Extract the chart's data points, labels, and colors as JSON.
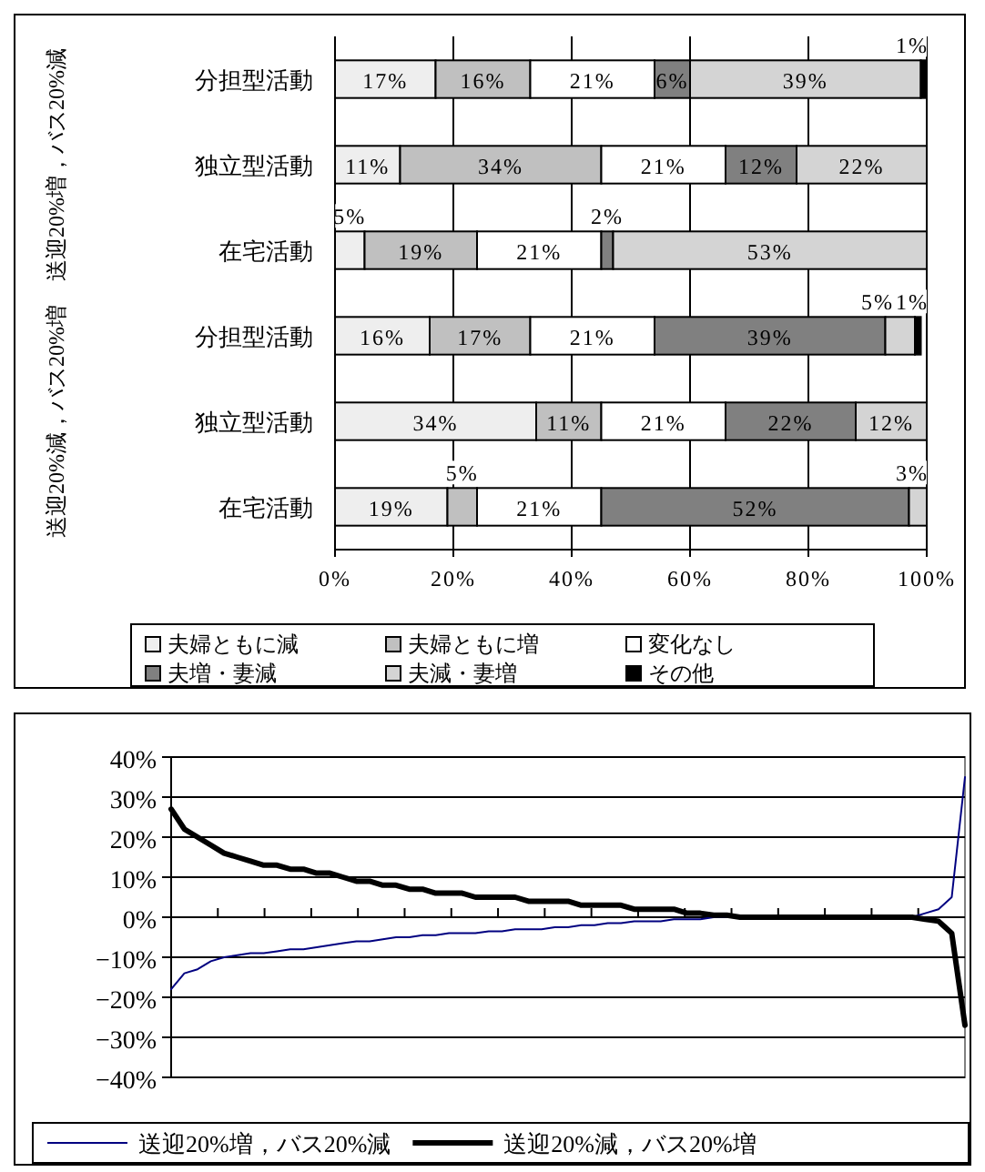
{
  "chart_data": [
    {
      "type": "bar",
      "orientation": "horizontal",
      "stacked": true,
      "categories": [
        "分担型活動",
        "独立型活動",
        "在宅活動",
        "分担型活動",
        "独立型活動",
        "在宅活動"
      ],
      "annotations": [
        "送迎20%増，バス20%減",
        "送迎20%減，バス20%増"
      ],
      "series": [
        {
          "name": "夫婦ともに減",
          "color": "#eeeeee",
          "values": [
            17,
            11,
            5,
            16,
            34,
            19
          ],
          "value_labels": [
            "17%",
            "11%",
            "5%",
            "16%",
            "34%",
            "19%"
          ]
        },
        {
          "name": "夫婦ともに増",
          "color": "#c0c0c0",
          "values": [
            16,
            34,
            19,
            17,
            11,
            5
          ],
          "value_labels": [
            "16%",
            "34%",
            "19%",
            "17%",
            "11%",
            "5%"
          ]
        },
        {
          "name": "変化なし",
          "color": "#ffffff",
          "values": [
            21,
            21,
            21,
            21,
            21,
            21
          ],
          "value_labels": [
            "21%",
            "21%",
            "21%",
            "21%",
            "21%",
            "21%"
          ]
        },
        {
          "name": "夫増・妻減",
          "color": "#808080",
          "values": [
            6,
            12,
            2,
            39,
            22,
            52
          ],
          "value_labels": [
            "6%",
            "12%",
            "2%",
            "39%",
            "22%",
            "52%"
          ]
        },
        {
          "name": "夫減・妻増",
          "color": "#d4d4d4",
          "values": [
            39,
            22,
            53,
            5,
            12,
            3
          ],
          "value_labels": [
            "39%",
            "22%",
            "53%",
            "5%",
            "12%",
            "3%"
          ]
        },
        {
          "name": "その他",
          "color": "#000000",
          "values": [
            1,
            0,
            0,
            1,
            0,
            0
          ],
          "value_labels": [
            "1%",
            null,
            null,
            "1%",
            null,
            null
          ]
        }
      ],
      "xlim": [
        0,
        100
      ],
      "xticks": [
        {
          "value": 0,
          "label": "0%"
        },
        {
          "value": 20,
          "label": "20%"
        },
        {
          "value": 40,
          "label": "40%"
        },
        {
          "value": 60,
          "label": "60%"
        },
        {
          "value": 80,
          "label": "80%"
        },
        {
          "value": 100,
          "label": "100%"
        }
      ],
      "grid": "x",
      "legend": "bottom"
    },
    {
      "type": "line",
      "categories": [
        null,
        null,
        null,
        null,
        null,
        null,
        null,
        null,
        null,
        null,
        null,
        null,
        null,
        null,
        null,
        null,
        null,
        null,
        null,
        null,
        null,
        null,
        null,
        null,
        null,
        null,
        null,
        null,
        null,
        null,
        null,
        null,
        null,
        null,
        null,
        null,
        null,
        null,
        null,
        null,
        null,
        null,
        null,
        null,
        null,
        null,
        null,
        null,
        null,
        null,
        null,
        null,
        null,
        null,
        null,
        null,
        null,
        null,
        null,
        null,
        null
      ],
      "series": [
        {
          "name": "送迎20%増，バス20%減",
          "color": "#000080",
          "values": [
            -18,
            -14,
            -13,
            -11,
            -10,
            -9.5,
            -9,
            -9,
            -8.5,
            -8,
            -8,
            -7.5,
            -7,
            -6.5,
            -6,
            -6,
            -5.5,
            -5,
            -5,
            -4.5,
            -4.5,
            -4,
            -4,
            -4,
            -3.5,
            -3.5,
            -3,
            -3,
            -3,
            -2.5,
            -2.5,
            -2,
            -2,
            -1.5,
            -1.5,
            -1,
            -1,
            -1,
            -0.5,
            -0.5,
            -0.5,
            0,
            0,
            0,
            0,
            0,
            0,
            0,
            0,
            0,
            0,
            0,
            0,
            0,
            0,
            0,
            0,
            1,
            2,
            5,
            35
          ]
        },
        {
          "name": "送迎20%減，バス20%増",
          "color": "#000000",
          "values": [
            27,
            22,
            20,
            18,
            16,
            15,
            14,
            13,
            13,
            12,
            12,
            11,
            11,
            10,
            9,
            9,
            8,
            8,
            7,
            7,
            6,
            6,
            6,
            5,
            5,
            5,
            5,
            4,
            4,
            4,
            4,
            3,
            3,
            3,
            3,
            2,
            2,
            2,
            2,
            1,
            1,
            0.5,
            0.5,
            0,
            0,
            0,
            0,
            0,
            0,
            0,
            0,
            0,
            0,
            0,
            0,
            0,
            0,
            -0.5,
            -1,
            -4,
            -27
          ]
        }
      ],
      "ylim": [
        -40,
        40
      ],
      "yticks": [
        {
          "value": -40,
          "label": "−40%"
        },
        {
          "value": -30,
          "label": "−30%"
        },
        {
          "value": -20,
          "label": "−20%"
        },
        {
          "value": -10,
          "label": "−10%"
        },
        {
          "value": 0,
          "label": "0%"
        },
        {
          "value": 10,
          "label": "10%"
        },
        {
          "value": 20,
          "label": "20%"
        },
        {
          "value": 30,
          "label": "30%"
        },
        {
          "value": 40,
          "label": "40%"
        }
      ],
      "grid": "y",
      "legend": "bottom",
      "tick_labels": "y"
    }
  ]
}
